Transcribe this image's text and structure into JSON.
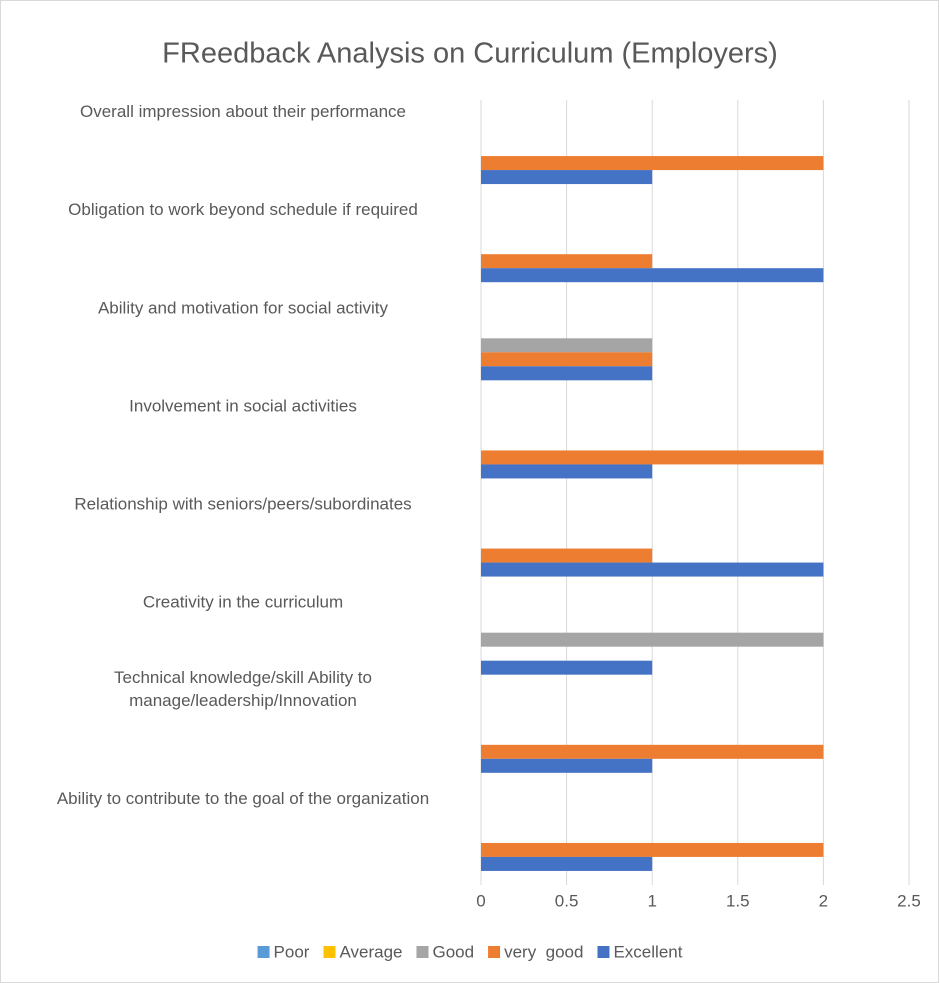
{
  "chart_data": {
    "type": "bar",
    "orientation": "horizontal",
    "title": "FReedback Analysis on Curriculum (Employers)",
    "categories": [
      "Overall impression about their performance",
      "Obligation to work beyond schedule if required",
      "Ability and motivation for social activity",
      "Involvement in social activities",
      "Relationship with seniors/peers/subordinates",
      "Creativity in the curriculum",
      "Technical knowledge/skill Ability to manage/leadership/Innovation",
      "Ability to contribute to the goal of the organization"
    ],
    "series": [
      {
        "name": "Poor",
        "color": "#5b9bd5",
        "values": [
          0,
          0,
          0,
          0,
          0,
          0,
          0,
          0
        ]
      },
      {
        "name": "Average",
        "color": "#ffc000",
        "values": [
          0,
          0,
          0,
          0,
          0,
          0,
          0,
          0
        ]
      },
      {
        "name": "Good",
        "color": "#a5a5a5",
        "values": [
          0,
          0,
          1,
          0,
          0,
          2,
          0,
          0
        ]
      },
      {
        "name": "very  good",
        "color": "#ed7d31",
        "values": [
          2,
          1,
          1,
          2,
          1,
          0,
          2,
          2
        ]
      },
      {
        "name": "Excellent",
        "color": "#4472c4",
        "values": [
          1,
          2,
          1,
          1,
          2,
          1,
          1,
          1
        ]
      }
    ],
    "xlim": [
      0,
      2.5
    ],
    "xticks": [
      0,
      0.5,
      1,
      1.5,
      2,
      2.5
    ],
    "grid": true,
    "legend": "bottom"
  }
}
